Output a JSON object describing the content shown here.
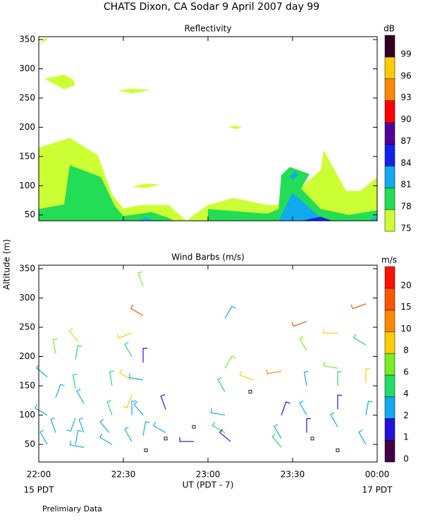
{
  "title": "CHATS Dixon, CA  Sodar   9 April 2007   day  99",
  "y_label": "Altitude (m)",
  "x_label": "UT  (PDT - 7)",
  "x_date_start": "15 PDT",
  "x_date_end": "17 PDT",
  "footnote": "Prelimiary Data",
  "chart_data": [
    {
      "type": "contour",
      "title": "Reflectivity",
      "xlim": [
        0,
        120
      ],
      "xticks": [
        {
          "value": 0,
          "label": "22:00"
        },
        {
          "value": 30,
          "label": "22:30"
        },
        {
          "value": 60,
          "label": "23:00"
        },
        {
          "value": 90,
          "label": "23:30"
        },
        {
          "value": 120,
          "label": "00:00"
        }
      ],
      "ylim": [
        40,
        355
      ],
      "yticks": [
        50,
        100,
        150,
        200,
        250,
        300,
        350
      ],
      "colorbar": {
        "label": "dB",
        "ticks": [
          75,
          78,
          81,
          84,
          87,
          90,
          93,
          96,
          99
        ],
        "colors": [
          "#ccff33",
          "#22dd55",
          "#11aaee",
          "#1122ee",
          "#550099",
          "#ff0000",
          "#ff8800",
          "#ffcc00",
          "#330022"
        ]
      },
      "regions": [
        {
          "level": 75,
          "x": [
            0,
            11,
            21,
            26,
            30,
            36,
            46,
            50,
            52.5,
            55,
            60,
            69,
            81,
            86,
            100,
            101,
            109,
            114,
            120,
            120,
            0
          ],
          "y": [
            165,
            182,
            152,
            85,
            61,
            67,
            67,
            50,
            40,
            50,
            67,
            79,
            67,
            67,
            127,
            161,
            91,
            91,
            115,
            40,
            40
          ]
        },
        {
          "level": 75,
          "x": [
            0,
            2,
            3.5,
            1
          ],
          "y": [
            340,
            352,
            352,
            344
          ]
        },
        {
          "level": 75,
          "x": [
            2,
            9,
            12,
            13,
            9
          ],
          "y": [
            283,
            290,
            282,
            272,
            265
          ]
        },
        {
          "level": 75,
          "x": [
            28,
            33,
            40,
            33
          ],
          "y": [
            263,
            266,
            264,
            258
          ]
        },
        {
          "level": 75,
          "x": [
            67,
            70,
            72,
            70
          ],
          "y": [
            200,
            203,
            200,
            197
          ]
        },
        {
          "level": 75,
          "x": [
            33,
            38,
            43,
            38
          ],
          "y": [
            98,
            104,
            102,
            96
          ]
        },
        {
          "level": 78,
          "x": [
            0,
            9,
            11,
            22,
            27,
            30,
            40,
            46,
            48,
            60,
            60,
            81,
            85,
            86,
            89,
            96,
            93,
            100,
            110,
            120,
            120,
            0
          ],
          "y": [
            60,
            68,
            135,
            115,
            65,
            48,
            55,
            45,
            40,
            40,
            60,
            52,
            60,
            118,
            132,
            120,
            95,
            60,
            50,
            58,
            40,
            40
          ]
        },
        {
          "level": 81,
          "x": [
            85,
            90,
            100,
            105
          ],
          "y": [
            40,
            88,
            45,
            40
          ]
        },
        {
          "level": 81,
          "x": [
            117,
            120,
            120
          ],
          "y": [
            40,
            48,
            40
          ]
        },
        {
          "level": 81,
          "x": [
            89,
            91,
            92,
            90
          ],
          "y": [
            115,
            125,
            118,
            110
          ]
        },
        {
          "level": 81,
          "x": [
            35,
            38,
            41
          ],
          "y": [
            40,
            46,
            40
          ]
        },
        {
          "level": 84,
          "x": [
            93,
            100,
            104
          ],
          "y": [
            40,
            47,
            40
          ]
        }
      ]
    },
    {
      "type": "barbs",
      "title": "Wind Barbs (m/s)",
      "xlim": [
        0,
        120
      ],
      "xticks": [
        {
          "value": 0,
          "label": "22:00"
        },
        {
          "value": 30,
          "label": "22:30"
        },
        {
          "value": 60,
          "label": "23:00"
        },
        {
          "value": 90,
          "label": "23:30"
        },
        {
          "value": 120,
          "label": "00:00"
        }
      ],
      "ylim": [
        20,
        356
      ],
      "yticks": [
        50,
        100,
        150,
        200,
        250,
        300,
        350
      ],
      "colorbar": {
        "label": "m/s",
        "ticks": [
          0,
          1,
          2,
          4,
          6,
          8,
          10,
          15,
          20
        ],
        "colors": [
          "#440044",
          "#2211dd",
          "#11aaee",
          "#22dd66",
          "#77ee22",
          "#ffcc00",
          "#ff8800",
          "#ff5500",
          "#ff1100"
        ]
      },
      "x": [
        3,
        3,
        3,
        6,
        6,
        6,
        13,
        13,
        13,
        13,
        14,
        16,
        16,
        16,
        25,
        26,
        26,
        26,
        33,
        33,
        33,
        33,
        33,
        33,
        37,
        37,
        37,
        37,
        37,
        37,
        38,
        45,
        45,
        45,
        55,
        55,
        66,
        66,
        66,
        66,
        66,
        68,
        75,
        76,
        86,
        86,
        86,
        86,
        95,
        95,
        95,
        95,
        95,
        97,
        106,
        106,
        106,
        106,
        106,
        106,
        116,
        116,
        116,
        116,
        116
      ],
      "y": [
        50,
        100,
        165,
        205,
        130,
        70,
        50,
        95,
        145,
        195,
        225,
        120,
        70,
        45,
        70,
        50,
        100,
        150,
        240,
        200,
        160,
        135,
        100,
        55,
        320,
        270,
        190,
        160,
        100,
        65,
        40,
        110,
        70,
        60,
        55,
        80,
        265,
        180,
        140,
        100,
        70,
        55,
        140,
        160,
        100,
        175,
        60,
        45,
        260,
        210,
        150,
        100,
        70,
        60,
        240,
        180,
        150,
        110,
        40,
        80,
        290,
        220,
        155,
        100,
        50
      ],
      "speed": [
        3,
        3,
        3,
        6,
        3,
        2,
        3,
        2,
        5,
        5,
        8,
        3,
        3,
        3,
        3,
        3,
        4,
        4,
        8,
        5,
        8,
        8,
        3,
        2,
        6,
        15,
        1,
        3,
        2,
        2,
        0,
        1,
        2,
        0,
        1,
        0,
        3,
        6,
        4,
        2,
        4,
        1,
        0,
        8,
        1,
        10,
        3,
        4,
        15,
        6,
        3,
        3,
        1,
        0,
        8,
        6,
        4,
        1,
        0,
        3,
        15,
        4,
        8,
        3,
        2
      ],
      "direction": [
        330,
        300,
        310,
        350,
        20,
        340,
        10,
        200,
        350,
        10,
        320,
        330,
        340,
        280,
        320,
        300,
        340,
        350,
        250,
        330,
        300,
        200,
        0,
        330,
        340,
        300,
        0,
        280,
        320,
        10,
        0,
        340,
        300,
        0,
        270,
        0,
        30,
        30,
        330,
        280,
        300,
        310,
        0,
        290,
        20,
        260,
        330,
        320,
        250,
        330,
        350,
        330,
        0,
        0,
        270,
        280,
        0,
        0,
        0,
        330,
        250,
        300,
        0,
        10,
        330
      ]
    }
  ]
}
